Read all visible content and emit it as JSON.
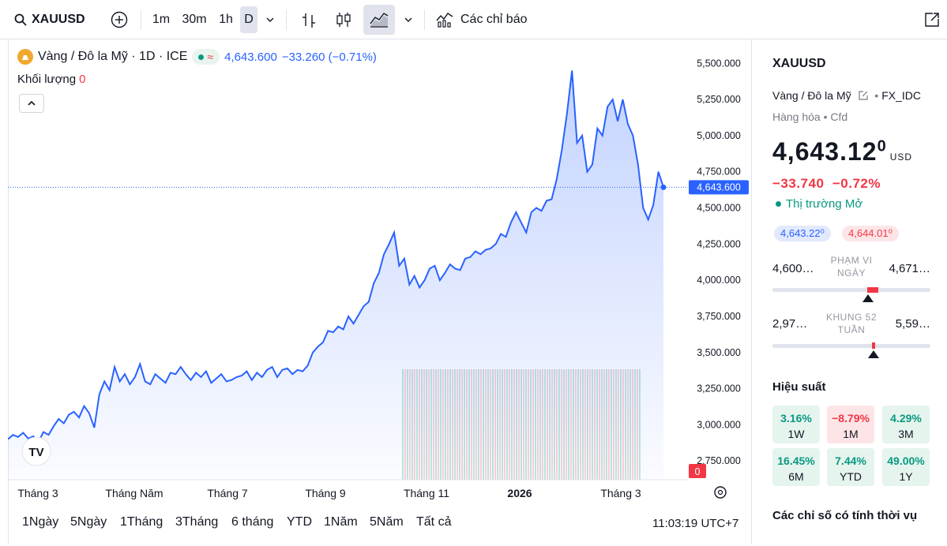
{
  "toolbar": {
    "symbol": "XAUUSD",
    "intervals": [
      "1m",
      "30m",
      "1h",
      "D"
    ],
    "indicators_label": "Các chỉ báo"
  },
  "legend": {
    "name": "Vàng / Đô la Mỹ · 1D · ICE",
    "price": "4,643.600",
    "change": "−33.260 (−0.71%)",
    "volume_label": "Khối lượng",
    "volume_value": "0"
  },
  "chart_data": {
    "type": "area",
    "x_tick_labels": [
      "Tháng 3",
      "Tháng Năm",
      "Tháng 7",
      "Tháng 9",
      "Tháng 11",
      "2026",
      "Tháng 3"
    ],
    "y_tick_labels": [
      "5,500.000",
      "5,250.000",
      "5,000.000",
      "4,750.000",
      "4,500.000",
      "4,250.000",
      "4,000.000",
      "3,750.000",
      "3,500.000",
      "3,250.000",
      "3,000.000",
      "2,750.000"
    ],
    "ylim": [
      2620,
      5600
    ],
    "last_price_label": "4,643.600",
    "volume_axis_label": "0",
    "series": [
      {
        "values": [
          2900,
          2930,
          2915,
          2945,
          2905,
          2920,
          2880,
          2950,
          2930,
          2990,
          3040,
          3010,
          3070,
          3090,
          3050,
          3130,
          3080,
          2980,
          3210,
          3300,
          3240,
          3400,
          3300,
          3350,
          3280,
          3330,
          3420,
          3300,
          3280,
          3350,
          3320,
          3290,
          3360,
          3350,
          3400,
          3350,
          3310,
          3360,
          3330,
          3370,
          3290,
          3320,
          3350,
          3300,
          3310,
          3330,
          3340,
          3370,
          3310,
          3360,
          3330,
          3380,
          3400,
          3330,
          3380,
          3390,
          3350,
          3380,
          3370,
          3410,
          3500,
          3540,
          3570,
          3650,
          3640,
          3680,
          3660,
          3750,
          3700,
          3760,
          3820,
          3850,
          3980,
          4050,
          4180,
          4250,
          4330,
          4100,
          4150,
          3970,
          4030,
          3950,
          4000,
          4080,
          4100,
          4000,
          4050,
          4110,
          4080,
          4070,
          4150,
          4160,
          4200,
          4180,
          4210,
          4220,
          4250,
          4320,
          4300,
          4400,
          4470,
          4400,
          4330,
          4470,
          4500,
          4480,
          4550,
          4560,
          4700,
          4900,
          5150,
          5450,
          4950,
          5000,
          4750,
          4800,
          5050,
          5000,
          5200,
          5250,
          5100,
          5250,
          5080,
          5000,
          4800,
          4500,
          4420,
          4520,
          4750,
          4643
        ]
      }
    ]
  },
  "time_ranges": [
    "1Ngày",
    "5Ngày",
    "1Tháng",
    "3Tháng",
    "6 tháng",
    "YTD",
    "1Năm",
    "5Năm",
    "Tất cả"
  ],
  "clock": "11:03:19 UTC+7",
  "panel": {
    "symbol": "XAUUSD",
    "name": "Vàng / Đô la Mỹ",
    "exchange": "FX_IDC",
    "category": "Hàng hóa • Cfd",
    "price_main": "4,643.12",
    "price_sup": "0",
    "currency": "USD",
    "change": "−33.740  −0.72%",
    "status": "Thị trường Mở",
    "bid": "4,643.22⁰",
    "ask": "4,644.01⁰",
    "day_low": "4,600…",
    "day_high": "4,671…",
    "day_label_1": "PHẠM VI",
    "day_label_2": "NGÀY",
    "wk_low": "2,97…",
    "wk_high": "5,59…",
    "wk_label_1": "KHUNG 52",
    "wk_label_2": "TUẦN",
    "perf_title": "Hiệu suất",
    "perf": [
      {
        "value": "3.16%",
        "period": "1W"
      },
      {
        "value": "−8.79%",
        "period": "1M"
      },
      {
        "value": "4.29%",
        "period": "3M"
      },
      {
        "value": "16.45%",
        "period": "6M"
      },
      {
        "value": "7.44%",
        "period": "YTD"
      },
      {
        "value": "49.00%",
        "period": "1Y"
      }
    ],
    "seasonal_title": "Các chỉ số có tính thời vụ"
  },
  "colors": {
    "accent": "#2962ff",
    "up": "#089981",
    "down": "#f23645"
  }
}
